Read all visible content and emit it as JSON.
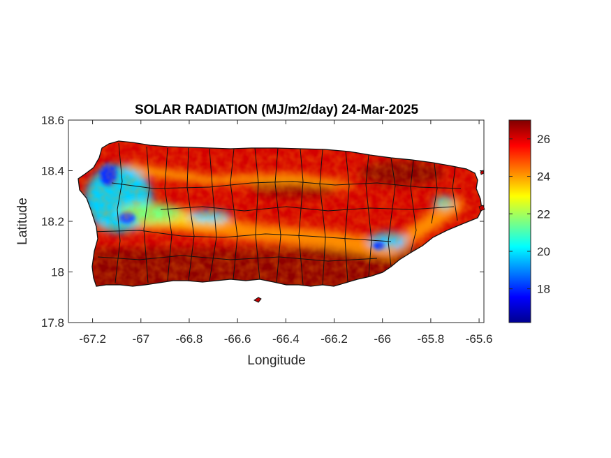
{
  "title": "SOLAR RADIATION (MJ/m2/day) 24-Mar-2025",
  "chart_data": {
    "type": "heatmap",
    "title": "SOLAR RADIATION (MJ/m2/day) 24-Mar-2025",
    "xlabel": "Longitude",
    "ylabel": "Latitude",
    "xlim": [
      -67.3,
      -65.58
    ],
    "ylim": [
      17.8,
      18.6
    ],
    "x_ticks": [
      -67.2,
      -67,
      -66.8,
      -66.6,
      -66.4,
      -66.2,
      -66,
      -65.8,
      -65.6
    ],
    "x_tick_labels": [
      "-67.2",
      "-67",
      "-66.8",
      "-66.6",
      "-66.4",
      "-66.2",
      "-66",
      "-65.8",
      "-65.6"
    ],
    "y_ticks": [
      17.8,
      18,
      18.2,
      18.4,
      18.6
    ],
    "y_tick_labels": [
      "17.8",
      "18",
      "18.2",
      "18.4",
      "18.6"
    ],
    "colorbar": {
      "colormap": "jet",
      "range": [
        16.2,
        27.0
      ],
      "ticks": [
        18,
        20,
        22,
        24,
        26
      ],
      "tick_labels": [
        "18",
        "20",
        "22",
        "24",
        "26"
      ]
    },
    "grid": false,
    "description_values": {
      "typical_range_south_and_interior": [
        25.5,
        27
      ],
      "minimum_west_coast": 17,
      "minimum_east": 19
    }
  }
}
